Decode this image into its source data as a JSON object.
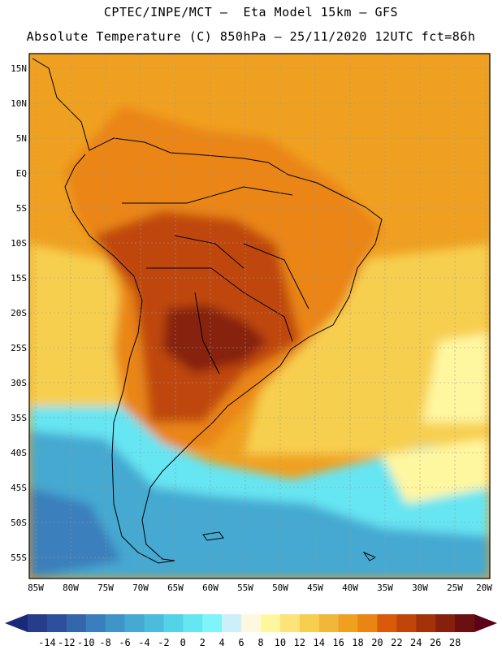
{
  "title": {
    "line1": "CPTEC/INPE/MCT –  Eta Model 15km – GFS",
    "line2": "Absolute Temperature (C) 850hPa – 25/11/2020 12UTC fct=86h"
  },
  "axes": {
    "lat_labels": [
      "15N",
      "10N",
      "5N",
      "EQ",
      "5S",
      "10S",
      "15S",
      "20S",
      "25S",
      "30S",
      "35S",
      "40S",
      "45S",
      "50S",
      "55S"
    ],
    "lon_labels": [
      "85W",
      "80W",
      "75W",
      "70W",
      "65W",
      "60W",
      "55W",
      "50W",
      "45W",
      "40W",
      "35W",
      "30W",
      "25W",
      "20W"
    ],
    "lon_range": [
      -85,
      -20
    ],
    "lat_range": [
      -58.5,
      17
    ]
  },
  "colorbar": {
    "labels": [
      "-14",
      "-12",
      "-10",
      "-8",
      "-6",
      "-4",
      "-2",
      "0",
      "2",
      "4",
      "6",
      "8",
      "10",
      "12",
      "14",
      "16",
      "18",
      "20",
      "22",
      "24",
      "26",
      "28"
    ],
    "colors": [
      "#283c8c",
      "#2d4f9c",
      "#3366aa",
      "#3a7fbc",
      "#3f95c8",
      "#45a9d1",
      "#4cbcdc",
      "#55d1e8",
      "#66e5f2",
      "#7ff5fa",
      "#cceffa",
      "#fff8e0",
      "#fff7a0",
      "#fde37a",
      "#f7cf50",
      "#f0b83a",
      "#f0a020",
      "#ea8514",
      "#d85a0a",
      "#bf4608",
      "#a3320a",
      "#86200d",
      "#6a1010"
    ],
    "under_color": "#182a78",
    "over_color": "#5a0018"
  },
  "map_colors": {
    "ocean_north": "#f0a020",
    "tropical_land": "#ea8514",
    "hot_core": "#bf4608",
    "hottest_core": "#86200d",
    "south_atlantic_warm": "#f7cf50",
    "south_atlantic_pale": "#fff7a0",
    "cold_ocean_mid": "#66e5f2",
    "cold_ocean_deep": "#45a9d1",
    "cold_ocean_deepest": "#3a7fbc"
  }
}
